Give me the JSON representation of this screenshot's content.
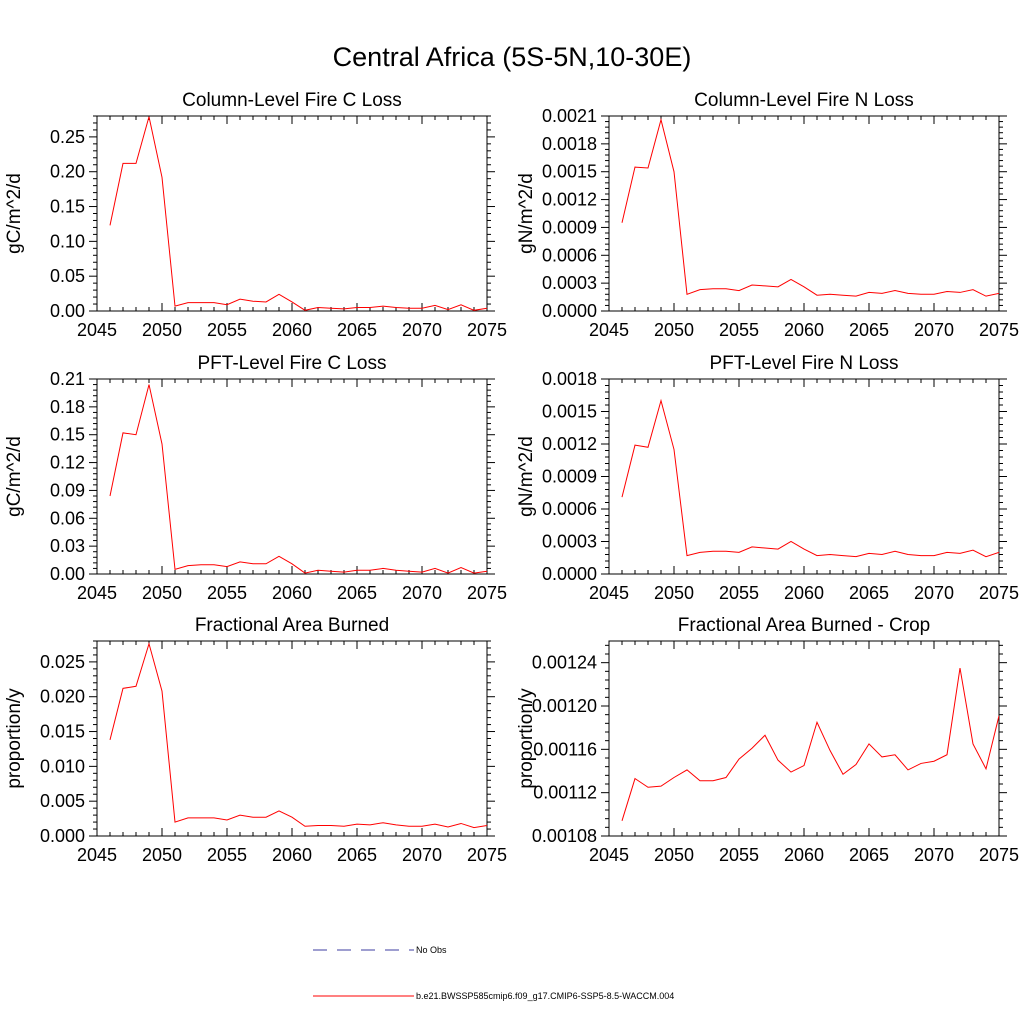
{
  "title": "Central Africa (5S-5N,10-30E)",
  "colors": {
    "model": "#ff0000",
    "obs": "#3c3ca0",
    "axes": "#000000"
  },
  "legend": {
    "entries": [
      {
        "label": "No Obs",
        "style": "dashed",
        "color": "#3c3ca0"
      },
      {
        "label": "b.e21.BWSSP585cmip6.f09_g17.CMIP6-SSP5-8.5-WACCM.004",
        "style": "solid",
        "color": "#ff0000"
      }
    ]
  },
  "chart_data": [
    {
      "type": "line",
      "title": "Column-Level Fire C Loss",
      "ylabel": "gC/m^2/d",
      "xlim": [
        2045,
        2075
      ],
      "ylim": [
        0,
        0.28
      ],
      "xticks": [
        "2045",
        "2050",
        "2055",
        "2060",
        "2065",
        "2070",
        "2075"
      ],
      "yticks": [
        "0.00",
        "0.05",
        "0.10",
        "0.15",
        "0.20",
        "0.25"
      ],
      "x": [
        2046,
        2047,
        2048,
        2049,
        2050,
        2051,
        2052,
        2053,
        2054,
        2055,
        2056,
        2057,
        2058,
        2059,
        2060,
        2061,
        2062,
        2063,
        2064,
        2065,
        2066,
        2067,
        2068,
        2069,
        2070,
        2071,
        2072,
        2073,
        2074,
        2075
      ],
      "series": [
        {
          "values": [
            0.123,
            0.212,
            0.212,
            0.279,
            0.192,
            0.007,
            0.012,
            0.012,
            0.012,
            0.009,
            0.017,
            0.014,
            0.013,
            0.024,
            0.013,
            0.001,
            0.005,
            0.004,
            0.003,
            0.005,
            0.005,
            0.007,
            0.005,
            0.004,
            0.004,
            0.008,
            0.002,
            0.009,
            0.001,
            0.004
          ]
        }
      ]
    },
    {
      "type": "line",
      "title": "Column-Level Fire N Loss",
      "ylabel": "gN/m^2/d",
      "xlim": [
        2045,
        2075
      ],
      "ylim": [
        0,
        0.0021
      ],
      "xticks": [
        "2045",
        "2050",
        "2055",
        "2060",
        "2065",
        "2070",
        "2075"
      ],
      "yticks": [
        "0.0000",
        "0.0003",
        "0.0006",
        "0.0009",
        "0.0012",
        "0.0015",
        "0.0018",
        "0.0021"
      ],
      "x": [
        2046,
        2047,
        2048,
        2049,
        2050,
        2051,
        2052,
        2053,
        2054,
        2055,
        2056,
        2057,
        2058,
        2059,
        2060,
        2061,
        2062,
        2063,
        2064,
        2065,
        2066,
        2067,
        2068,
        2069,
        2070,
        2071,
        2072,
        2073,
        2074,
        2075
      ],
      "series": [
        {
          "values": [
            0.00095,
            0.00155,
            0.00154,
            0.00206,
            0.0015,
            0.00018,
            0.00023,
            0.00024,
            0.00024,
            0.00022,
            0.00028,
            0.00027,
            0.00026,
            0.00034,
            0.00026,
            0.00017,
            0.00018,
            0.00017,
            0.00016,
            0.0002,
            0.00019,
            0.00022,
            0.00019,
            0.00018,
            0.00018,
            0.00021,
            0.0002,
            0.00023,
            0.00016,
            0.00019
          ]
        }
      ]
    },
    {
      "type": "line",
      "title": "PFT-Level Fire C Loss",
      "ylabel": "gC/m^2/d",
      "xlim": [
        2045,
        2075
      ],
      "ylim": [
        0,
        0.21
      ],
      "xticks": [
        "2045",
        "2050",
        "2055",
        "2060",
        "2065",
        "2070",
        "2075"
      ],
      "yticks": [
        "0.00",
        "0.03",
        "0.06",
        "0.09",
        "0.12",
        "0.15",
        "0.18",
        "0.21"
      ],
      "x": [
        2046,
        2047,
        2048,
        2049,
        2050,
        2051,
        2052,
        2053,
        2054,
        2055,
        2056,
        2057,
        2058,
        2059,
        2060,
        2061,
        2062,
        2063,
        2064,
        2065,
        2066,
        2067,
        2068,
        2069,
        2070,
        2071,
        2072,
        2073,
        2074,
        2075
      ],
      "series": [
        {
          "values": [
            0.084,
            0.152,
            0.15,
            0.204,
            0.14,
            0.005,
            0.009,
            0.01,
            0.01,
            0.008,
            0.013,
            0.011,
            0.011,
            0.019,
            0.011,
            0.001,
            0.004,
            0.003,
            0.002,
            0.004,
            0.004,
            0.006,
            0.004,
            0.003,
            0.002,
            0.006,
            0.001,
            0.007,
            0.001,
            0.003
          ]
        }
      ]
    },
    {
      "type": "line",
      "title": "PFT-Level Fire N Loss",
      "ylabel": "gN/m^2/d",
      "xlim": [
        2045,
        2075
      ],
      "ylim": [
        0,
        0.0018
      ],
      "xticks": [
        "2045",
        "2050",
        "2055",
        "2060",
        "2065",
        "2070",
        "2075"
      ],
      "yticks": [
        "0.0000",
        "0.0003",
        "0.0006",
        "0.0009",
        "0.0012",
        "0.0015",
        "0.0018"
      ],
      "x": [
        2046,
        2047,
        2048,
        2049,
        2050,
        2051,
        2052,
        2053,
        2054,
        2055,
        2056,
        2057,
        2058,
        2059,
        2060,
        2061,
        2062,
        2063,
        2064,
        2065,
        2066,
        2067,
        2068,
        2069,
        2070,
        2071,
        2072,
        2073,
        2074,
        2075
      ],
      "series": [
        {
          "values": [
            0.00071,
            0.00119,
            0.00117,
            0.0016,
            0.00115,
            0.00017,
            0.0002,
            0.00021,
            0.00021,
            0.0002,
            0.00025,
            0.00024,
            0.00023,
            0.0003,
            0.00023,
            0.00017,
            0.00018,
            0.00017,
            0.00016,
            0.00019,
            0.00018,
            0.00021,
            0.00018,
            0.00017,
            0.00017,
            0.0002,
            0.00019,
            0.00022,
            0.00016,
            0.0002
          ]
        }
      ]
    },
    {
      "type": "line",
      "title": "Fractional Area Burned",
      "ylabel": "proportion/y",
      "xlim": [
        2045,
        2075
      ],
      "ylim": [
        0,
        0.028
      ],
      "xticks": [
        "2045",
        "2050",
        "2055",
        "2060",
        "2065",
        "2070",
        "2075"
      ],
      "yticks": [
        "0.000",
        "0.005",
        "0.010",
        "0.015",
        "0.020",
        "0.025"
      ],
      "x": [
        2046,
        2047,
        2048,
        2049,
        2050,
        2051,
        2052,
        2053,
        2054,
        2055,
        2056,
        2057,
        2058,
        2059,
        2060,
        2061,
        2062,
        2063,
        2064,
        2065,
        2066,
        2067,
        2068,
        2069,
        2070,
        2071,
        2072,
        2073,
        2074,
        2075
      ],
      "series": [
        {
          "values": [
            0.0138,
            0.0212,
            0.0215,
            0.0276,
            0.0208,
            0.002,
            0.0026,
            0.0026,
            0.0026,
            0.0023,
            0.003,
            0.0027,
            0.0027,
            0.0036,
            0.0027,
            0.0014,
            0.0015,
            0.0015,
            0.0014,
            0.0017,
            0.0016,
            0.0019,
            0.0016,
            0.0014,
            0.0014,
            0.0017,
            0.0013,
            0.0018,
            0.0012,
            0.0015
          ]
        }
      ]
    },
    {
      "type": "line",
      "title": "Fractional Area Burned - Crop",
      "ylabel": "proportion/y",
      "xlim": [
        2045,
        2075
      ],
      "ylim": [
        0.00108,
        0.00126
      ],
      "xticks": [
        "2045",
        "2050",
        "2055",
        "2060",
        "2065",
        "2070",
        "2075"
      ],
      "yticks": [
        "0.00108",
        "0.00112",
        "0.00116",
        "0.00120",
        "0.00124"
      ],
      "x": [
        2046,
        2047,
        2048,
        2049,
        2050,
        2051,
        2052,
        2053,
        2054,
        2055,
        2056,
        2057,
        2058,
        2059,
        2060,
        2061,
        2062,
        2063,
        2064,
        2065,
        2066,
        2067,
        2068,
        2069,
        2070,
        2071,
        2072,
        2073,
        2074,
        2075
      ],
      "series": [
        {
          "values": [
            0.001094,
            0.001133,
            0.001125,
            0.001126,
            0.001134,
            0.001141,
            0.001131,
            0.001131,
            0.001134,
            0.001151,
            0.001161,
            0.001173,
            0.00115,
            0.001139,
            0.001145,
            0.001185,
            0.001159,
            0.001137,
            0.001146,
            0.001165,
            0.001153,
            0.001155,
            0.001141,
            0.001147,
            0.001149,
            0.001155,
            0.001235,
            0.001165,
            0.001142,
            0.001191
          ]
        }
      ]
    }
  ]
}
